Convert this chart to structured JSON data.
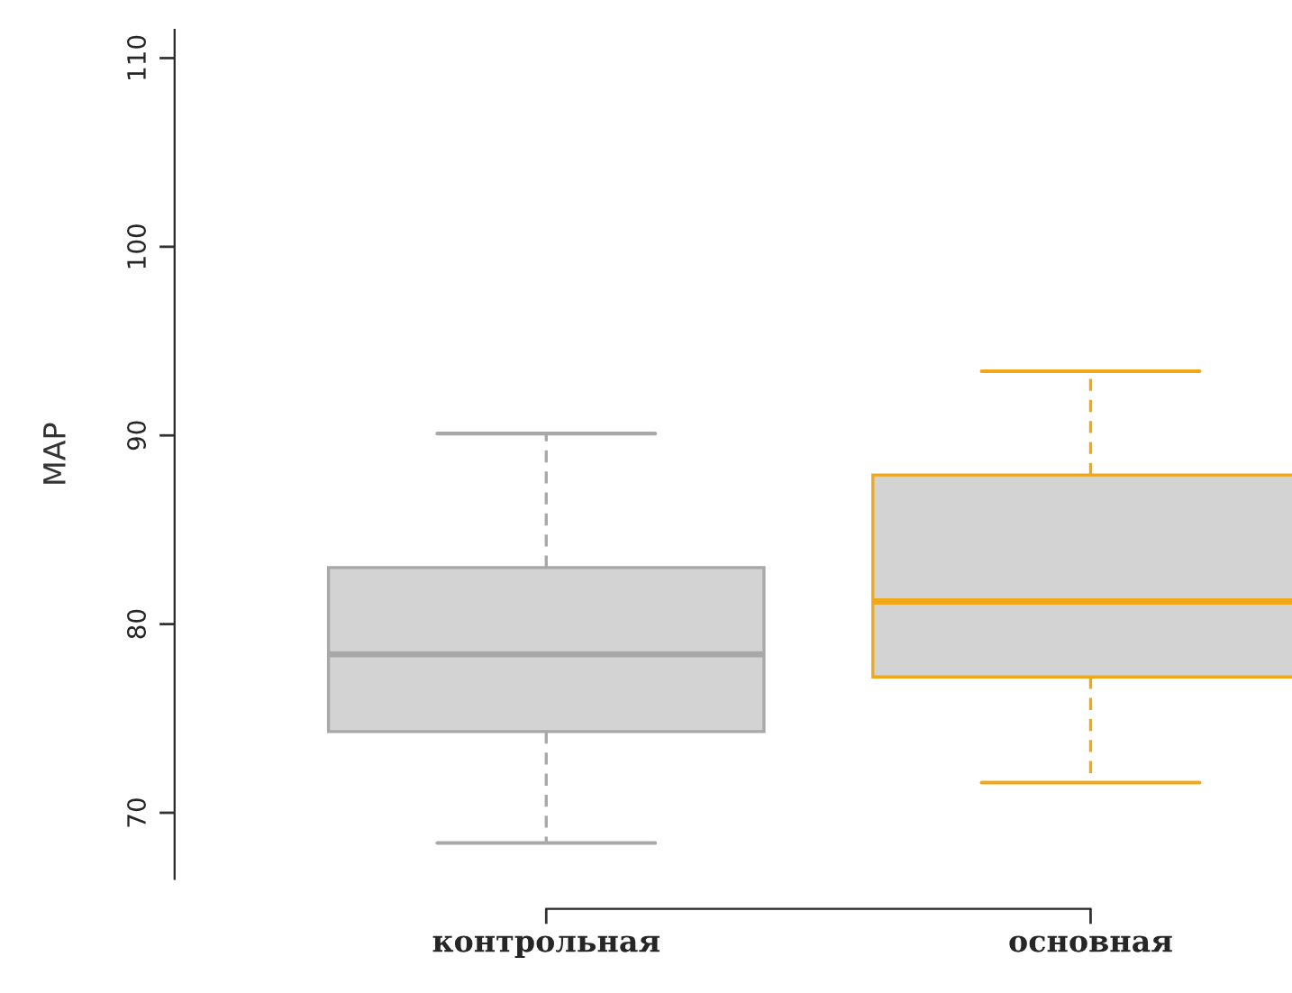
{
  "chart_data": {
    "type": "box",
    "ylabel": "MAP",
    "categories": [
      "контрольная",
      "основная"
    ],
    "boxes": [
      {
        "low": 68.4,
        "q1": 74.3,
        "median": 78.4,
        "q3": 83.0,
        "high": 90.1
      },
      {
        "low": 71.6,
        "q1": 77.2,
        "median": 81.2,
        "q3": 87.9,
        "high": 93.4
      }
    ],
    "colors": [
      "#a8a8a8",
      "#f0a818"
    ],
    "ylim": [
      66.5,
      111.5
    ],
    "yticks": [
      70,
      80,
      90,
      100,
      110
    ],
    "grid": false
  }
}
